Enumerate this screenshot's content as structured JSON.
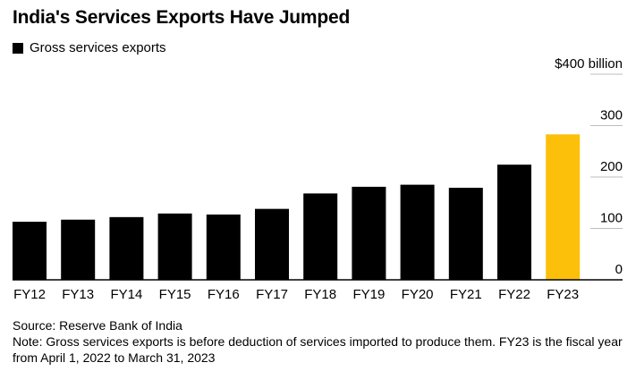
{
  "chart_data": {
    "type": "bar",
    "title": "India's Services Exports Have Jumped",
    "categories": [
      "FY12",
      "FY13",
      "FY14",
      "FY15",
      "FY16",
      "FY17",
      "FY18",
      "FY19",
      "FY20",
      "FY21",
      "FY22",
      "FY23"
    ],
    "series": [
      {
        "name": "Gross services exports",
        "values": [
          113,
          117,
          122,
          129,
          127,
          138,
          168,
          181,
          185,
          179,
          224,
          283
        ]
      }
    ],
    "highlight_index": 11,
    "colors": {
      "bar": "#000000",
      "highlight": "#fcc00a",
      "grid": "#bdbdbd",
      "axis": "#000000"
    },
    "ylim": [
      0,
      400
    ],
    "yticks": [
      {
        "value": 0,
        "label": "0"
      },
      {
        "value": 100,
        "label": "100"
      },
      {
        "value": 200,
        "label": "200"
      },
      {
        "value": 300,
        "label": "300"
      },
      {
        "value": 400,
        "label": "$400 billion"
      }
    ],
    "grid": true,
    "legend_position": "top-left",
    "xlabel": "",
    "ylabel": ""
  },
  "footer": {
    "source": "Source: Reserve Bank of India",
    "note": "Note: Gross services exports is before deduction of services imported to produce them. FY23 is the fiscal year from April 1, 2022 to March 31, 2023"
  }
}
